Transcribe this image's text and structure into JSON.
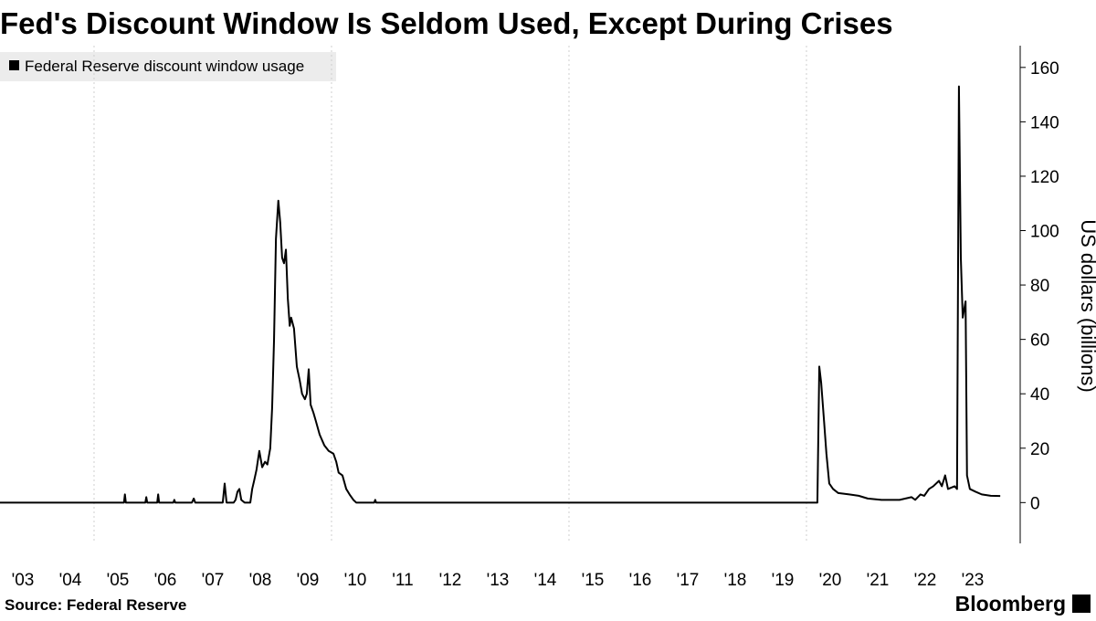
{
  "chart_data": {
    "type": "line",
    "title": "Fed's Discount Window Is Seldom Used, Except During Crises",
    "y_label": "US dollars (billions)",
    "source": "Source: Federal Reserve",
    "brand": "Bloomberg",
    "series": [
      {
        "name": "Federal Reserve discount window usage",
        "color": "#000000",
        "x": [
          2003.02,
          2005.63,
          2005.65,
          2005.67,
          2006.08,
          2006.1,
          2006.12,
          2006.33,
          2006.35,
          2006.37,
          2006.67,
          2006.69,
          2006.71,
          2007.06,
          2007.1,
          2007.13,
          2007.71,
          2007.75,
          2007.79,
          2007.94,
          2007.98,
          2008.02,
          2008.06,
          2008.1,
          2008.17,
          2008.29,
          2008.33,
          2008.37,
          2008.42,
          2008.48,
          2008.54,
          2008.6,
          2008.65,
          2008.71,
          2008.75,
          2008.79,
          2008.83,
          2008.88,
          2008.92,
          2008.96,
          2009.0,
          2009.04,
          2009.08,
          2009.12,
          2009.15,
          2009.21,
          2009.27,
          2009.33,
          2009.38,
          2009.44,
          2009.48,
          2009.52,
          2009.56,
          2009.62,
          2009.67,
          2009.75,
          2009.85,
          2009.94,
          2010.04,
          2010.1,
          2010.15,
          2010.23,
          2010.31,
          2010.38,
          2010.46,
          2010.52,
          2010.9,
          2010.92,
          2010.94,
          2020.23,
          2020.27,
          2020.31,
          2020.37,
          2020.42,
          2020.48,
          2020.56,
          2020.67,
          2020.9,
          2021.1,
          2021.29,
          2021.58,
          2021.96,
          2022.21,
          2022.29,
          2022.4,
          2022.48,
          2022.58,
          2022.67,
          2022.79,
          2022.85,
          2022.92,
          2022.98,
          2023.12,
          2023.17,
          2023.21,
          2023.25,
          2023.29,
          2023.35,
          2023.38,
          2023.44,
          2023.56,
          2023.69,
          2023.88,
          2024.08
        ],
        "values": [
          0,
          0,
          3,
          0,
          0,
          2,
          0,
          0,
          3,
          0,
          0,
          1,
          0,
          0,
          1.5,
          0,
          0,
          7,
          0,
          0,
          1,
          4,
          5,
          1,
          0,
          0,
          5,
          8,
          12,
          19,
          13,
          15,
          14,
          20,
          35,
          60,
          97,
          111,
          103,
          90,
          88,
          93,
          75,
          65,
          68,
          64,
          50,
          45,
          40,
          38,
          40,
          49,
          36,
          33,
          30,
          25,
          21,
          19,
          18,
          15,
          11,
          10,
          5,
          3,
          1,
          0,
          0,
          1,
          0,
          0,
          50,
          44,
          30,
          18,
          7,
          5,
          3.5,
          3,
          2.5,
          1.5,
          1,
          1,
          2,
          1,
          3,
          2.5,
          5,
          6,
          8,
          6,
          10,
          5,
          6,
          5,
          153,
          90,
          68,
          74,
          10,
          5,
          4,
          3,
          2.5,
          2.4
        ]
      }
    ],
    "xlim": [
      2003.02,
      2024.5
    ],
    "xticks": [
      {
        "value": 2003.5,
        "label": "'03"
      },
      {
        "value": 2004.5,
        "label": "'04"
      },
      {
        "value": 2005.5,
        "label": "'05"
      },
      {
        "value": 2006.5,
        "label": "'06"
      },
      {
        "value": 2007.5,
        "label": "'07"
      },
      {
        "value": 2008.5,
        "label": "'08"
      },
      {
        "value": 2009.5,
        "label": "'09"
      },
      {
        "value": 2010.5,
        "label": "'10"
      },
      {
        "value": 2011.5,
        "label": "'11"
      },
      {
        "value": 2012.5,
        "label": "'12"
      },
      {
        "value": 2013.5,
        "label": "'13"
      },
      {
        "value": 2014.5,
        "label": "'14"
      },
      {
        "value": 2015.5,
        "label": "'15"
      },
      {
        "value": 2016.5,
        "label": "'16"
      },
      {
        "value": 2017.5,
        "label": "'17"
      },
      {
        "value": 2018.5,
        "label": "'18"
      },
      {
        "value": 2019.5,
        "label": "'19"
      },
      {
        "value": 2020.5,
        "label": "'20"
      },
      {
        "value": 2021.5,
        "label": "'21"
      },
      {
        "value": 2022.5,
        "label": "'22"
      },
      {
        "value": 2023.5,
        "label": "'23"
      }
    ],
    "xgrid": [
      2005,
      2010,
      2015,
      2020
    ],
    "ylim": [
      -15,
      168
    ],
    "yticks": [
      0,
      20,
      40,
      60,
      80,
      100,
      120,
      140,
      160
    ],
    "y_axis_side": "right"
  }
}
